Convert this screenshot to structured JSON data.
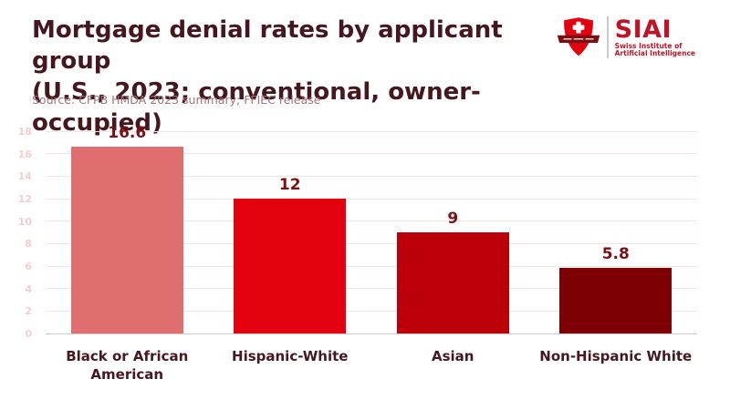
{
  "header": {
    "title_line1": "Mortgage denial rates by applicant group",
    "title_line2": "(U.S., 2023; conventional, owner-occupied)",
    "source": "Source: CFPB HMDA 2023 summary; FFIEC release"
  },
  "logo": {
    "acronym": "SIAI",
    "subtitle_line1": "Swiss Institute of",
    "subtitle_line2": "Artificial Intelligence",
    "shield_color": "#e3000f",
    "ribbon_color": "#7a0e12",
    "text_color": "#c11325"
  },
  "chart_data": {
    "type": "bar",
    "title": "Mortgage denial rates by applicant group (U.S., 2023; conventional, owner-occupied)",
    "categories": [
      "Black or African American",
      "Hispanic-White",
      "Asian",
      "Non-Hispanic White"
    ],
    "values": [
      16.6,
      12,
      9,
      5.8
    ],
    "value_labels": [
      "16.6",
      "12",
      "9",
      "5.8"
    ],
    "bar_colors": [
      "#e06e6e",
      "#e3000f",
      "#bb000a",
      "#7c0004"
    ],
    "xlabel": "",
    "ylabel": "",
    "ylim": [
      0,
      18
    ],
    "yticks": [
      0,
      2,
      4,
      6,
      8,
      10,
      12,
      14,
      16,
      18
    ],
    "grid": true,
    "legend": "none"
  },
  "colors": {
    "background": "#ffffff",
    "title": "#45171f",
    "source": "#9d7478",
    "grid": "#f8e3e3",
    "zero_line": "#cbcbcb",
    "ytick": "#f2cfcf",
    "value_label": "#7b1115",
    "xtick": "#45171f"
  }
}
